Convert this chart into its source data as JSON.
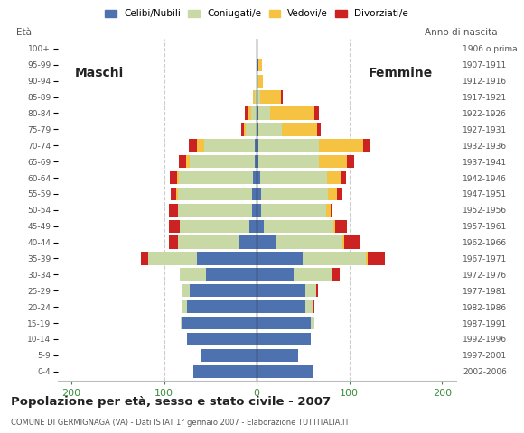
{
  "age_groups": [
    "0-4",
    "5-9",
    "10-14",
    "15-19",
    "20-24",
    "25-29",
    "30-34",
    "35-39",
    "40-44",
    "45-49",
    "50-54",
    "55-59",
    "60-64",
    "65-69",
    "70-74",
    "75-79",
    "80-84",
    "85-89",
    "90-94",
    "95-99",
    "100+"
  ],
  "birth_years": [
    "2002-2006",
    "1997-2001",
    "1992-1996",
    "1987-1991",
    "1982-1986",
    "1977-1981",
    "1972-1976",
    "1967-1971",
    "1962-1966",
    "1957-1961",
    "1952-1956",
    "1947-1951",
    "1942-1946",
    "1937-1941",
    "1932-1936",
    "1927-1931",
    "1922-1926",
    "1917-1921",
    "1912-1916",
    "1907-1911",
    "1906 o prima"
  ],
  "m_celibe": [
    68,
    60,
    75,
    80,
    75,
    72,
    55,
    65,
    20,
    8,
    5,
    5,
    4,
    2,
    2,
    0,
    0,
    0,
    0,
    0,
    0
  ],
  "m_coniugato": [
    0,
    0,
    0,
    2,
    5,
    8,
    28,
    52,
    65,
    75,
    80,
    80,
    80,
    70,
    55,
    12,
    6,
    2,
    0,
    0,
    0
  ],
  "m_vedovo": [
    0,
    0,
    0,
    0,
    0,
    0,
    0,
    0,
    0,
    0,
    0,
    2,
    2,
    4,
    8,
    2,
    4,
    2,
    0,
    0,
    0
  ],
  "m_divorziato": [
    0,
    0,
    0,
    0,
    0,
    0,
    0,
    8,
    10,
    12,
    10,
    6,
    8,
    8,
    8,
    3,
    3,
    0,
    0,
    0,
    0
  ],
  "f_nubile": [
    60,
    45,
    58,
    58,
    52,
    52,
    40,
    50,
    20,
    8,
    5,
    5,
    4,
    2,
    2,
    2,
    2,
    0,
    0,
    2,
    0
  ],
  "f_coniugata": [
    0,
    0,
    0,
    4,
    8,
    12,
    42,
    68,
    72,
    75,
    70,
    72,
    72,
    65,
    65,
    25,
    12,
    4,
    2,
    0,
    0
  ],
  "f_vedova": [
    0,
    0,
    0,
    0,
    0,
    0,
    0,
    2,
    2,
    2,
    5,
    10,
    15,
    30,
    48,
    38,
    48,
    22,
    5,
    4,
    0
  ],
  "f_divorziata": [
    0,
    0,
    0,
    0,
    2,
    2,
    8,
    18,
    18,
    12,
    2,
    5,
    5,
    8,
    8,
    4,
    5,
    2,
    0,
    0,
    0
  ],
  "c_celibe": "#4e72b0",
  "c_coniugato": "#c8d9a5",
  "c_vedovo": "#f5c242",
  "c_divorziato": "#cc2222",
  "xlim": [
    -215,
    215
  ],
  "xticks": [
    -200,
    -100,
    0,
    100,
    200
  ],
  "xticklabels": [
    "200",
    "100",
    "0",
    "100",
    "200"
  ],
  "title": "Popolazione per età, sesso e stato civile - 2007",
  "subtitle": "COMUNE DI GERMIGNAGA (VA) - Dati ISTAT 1° gennaio 2007 - Elaborazione TUTTITALIA.IT",
  "ylabel_left": "Età",
  "ylabel_right": "Anno di nascita",
  "label_maschi": "Maschi",
  "label_femmine": "Femmine",
  "legend_labels": [
    "Celibi/Nubili",
    "Coniugati/e",
    "Vedovi/e",
    "Divorziati/e"
  ],
  "bg_color": "#ffffff",
  "grid_color": "#cccccc",
  "tick_color": "#3a8c3a",
  "bar_height": 0.8
}
